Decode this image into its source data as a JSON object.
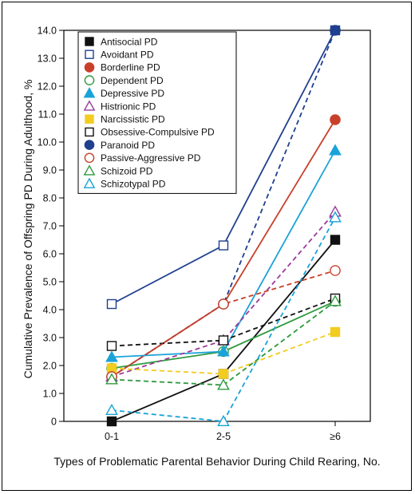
{
  "chart_data": {
    "type": "line",
    "title": "",
    "xlabel": "Types of Problematic Parental Behavior During Child Rearing, No.",
    "ylabel": "Cumulative Prevalence of Offspring PD During Adulthood, %",
    "categories": [
      "0-1",
      "2-5",
      "≥6"
    ],
    "ylim": [
      0,
      14
    ],
    "yticks": [
      "0",
      "1.0",
      "2.0",
      "3.0",
      "4.0",
      "5.0",
      "6.0",
      "7.0",
      "8.0",
      "9.0",
      "10.0",
      "11.0",
      "12.0",
      "13.0",
      "14.0"
    ],
    "legend_position": "top-left",
    "series": [
      {
        "name": "Antisocial PD",
        "values": [
          0.0,
          1.7,
          6.5
        ],
        "color": "#111111",
        "marker": "square",
        "filled": true,
        "dash": false
      },
      {
        "name": "Avoidant PD",
        "values": [
          4.2,
          6.3,
          14.0
        ],
        "color": "#1f3f8f",
        "marker": "square",
        "filled": false,
        "dash": false
      },
      {
        "name": "Borderline PD",
        "values": [
          1.6,
          4.2,
          10.8
        ],
        "color": "#c8402a",
        "marker": "circle",
        "filled": true,
        "dash": false
      },
      {
        "name": "Dependent PD",
        "values": [
          1.9,
          2.5,
          4.3
        ],
        "color": "#2e9a3e",
        "marker": "circle",
        "filled": false,
        "dash": false
      },
      {
        "name": "Depressive PD",
        "values": [
          2.3,
          2.5,
          9.7
        ],
        "color": "#1aa3d8",
        "marker": "triangle",
        "filled": true,
        "dash": false
      },
      {
        "name": "Histrionic PD",
        "values": [
          1.6,
          2.9,
          7.5
        ],
        "color": "#9b3a9b",
        "marker": "triangle",
        "filled": false,
        "dash": true
      },
      {
        "name": "Narcissistic PD",
        "values": [
          1.9,
          1.7,
          3.2
        ],
        "color": "#f2cc1f",
        "marker": "square",
        "filled": true,
        "dash": true
      },
      {
        "name": "Obsessive-Compulsive PD",
        "values": [
          2.7,
          2.9,
          4.4
        ],
        "color": "#111111",
        "marker": "square",
        "filled": false,
        "dash": true
      },
      {
        "name": "Paranoid PD",
        "values": [
          1.6,
          4.2,
          14.0
        ],
        "color": "#1f3f8f",
        "marker": "circle",
        "filled": true,
        "dash": true
      },
      {
        "name": "Passive-Aggressive PD",
        "values": [
          1.6,
          4.2,
          5.4
        ],
        "color": "#c8402a",
        "marker": "circle",
        "filled": false,
        "dash": true
      },
      {
        "name": "Schizoid PD",
        "values": [
          1.5,
          1.3,
          4.3
        ],
        "color": "#2e9a3e",
        "marker": "triangle",
        "filled": false,
        "dash": true
      },
      {
        "name": "Schizotypal PD",
        "values": [
          0.4,
          0.0,
          7.3
        ],
        "color": "#1aa3d8",
        "marker": "triangle",
        "filled": false,
        "dash": true
      }
    ]
  }
}
